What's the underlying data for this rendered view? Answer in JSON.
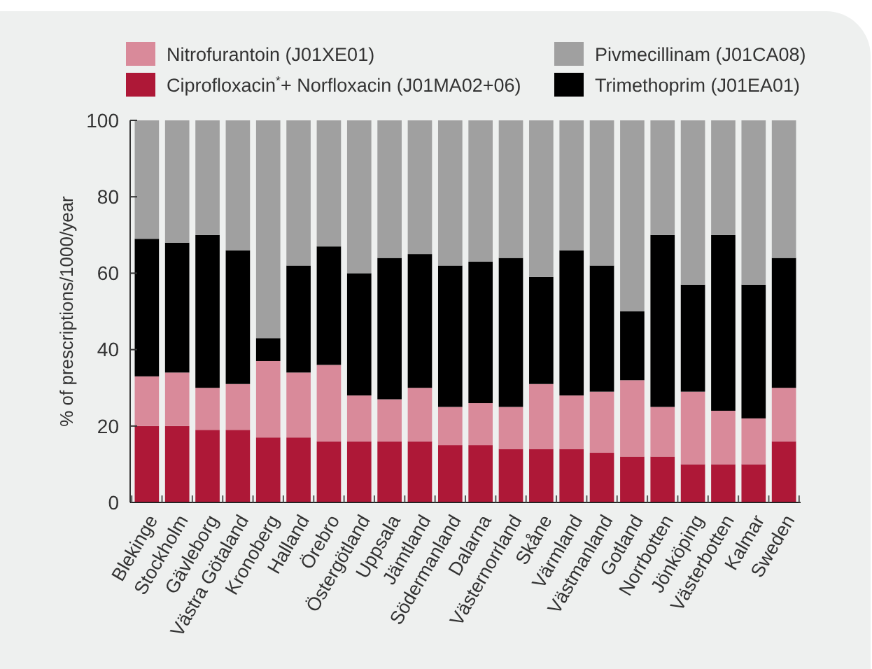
{
  "chart_data": {
    "type": "bar",
    "stacked": true,
    "ylabel": "% of prescriptions/1000/year",
    "categories": [
      "Blekinge",
      "Stockholm",
      "Gävleborg",
      "Västra Götaland",
      "Kronoberg",
      "Halland",
      "Örebro",
      "Östergötland",
      "Uppsala",
      "Jämtland",
      "Södermanland",
      "Dalarna",
      "Västernorrland",
      "Skåne",
      "Värmland",
      "Västmanland",
      "Gotland",
      "Norrbotten",
      "Jönköping",
      "Västerbotten",
      "Kalmar",
      "Sweden"
    ],
    "series": [
      {
        "name": "Ciprofloxacin$^{*}$+ Norfloxacin (J01MA02+06)",
        "color": "#ae1837",
        "values": [
          20,
          20,
          19,
          19,
          17,
          17,
          16,
          16,
          16,
          16,
          15,
          15,
          14,
          14,
          14,
          13,
          12,
          12,
          10,
          10,
          10,
          16
        ]
      },
      {
        "name": "Nitrofurantoin (J01XE01)",
        "color": "#d98a9a",
        "values": [
          13,
          14,
          11,
          12,
          20,
          17,
          20,
          12,
          11,
          14,
          10,
          11,
          11,
          17,
          14,
          16,
          20,
          13,
          19,
          14,
          12,
          14
        ]
      },
      {
        "name": "Trimethoprim (J01EA01)",
        "color": "#000000",
        "values": [
          36,
          34,
          40,
          35,
          6,
          28,
          31,
          32,
          37,
          35,
          37,
          37,
          39,
          28,
          38,
          33,
          18,
          45,
          28,
          46,
          35,
          34
        ]
      },
      {
        "name": "Pivmecillinam (J01CA08)",
        "color": "#a0a0a0",
        "values": [
          31,
          32,
          30,
          34,
          57,
          38,
          33,
          40,
          36,
          35,
          38,
          37,
          36,
          41,
          34,
          38,
          50,
          30,
          43,
          30,
          43,
          36
        ]
      }
    ],
    "ylim": [
      0,
      100
    ],
    "yticks": [
      0,
      20,
      40,
      60,
      80,
      100
    ],
    "grid": false,
    "legend": "top"
  }
}
